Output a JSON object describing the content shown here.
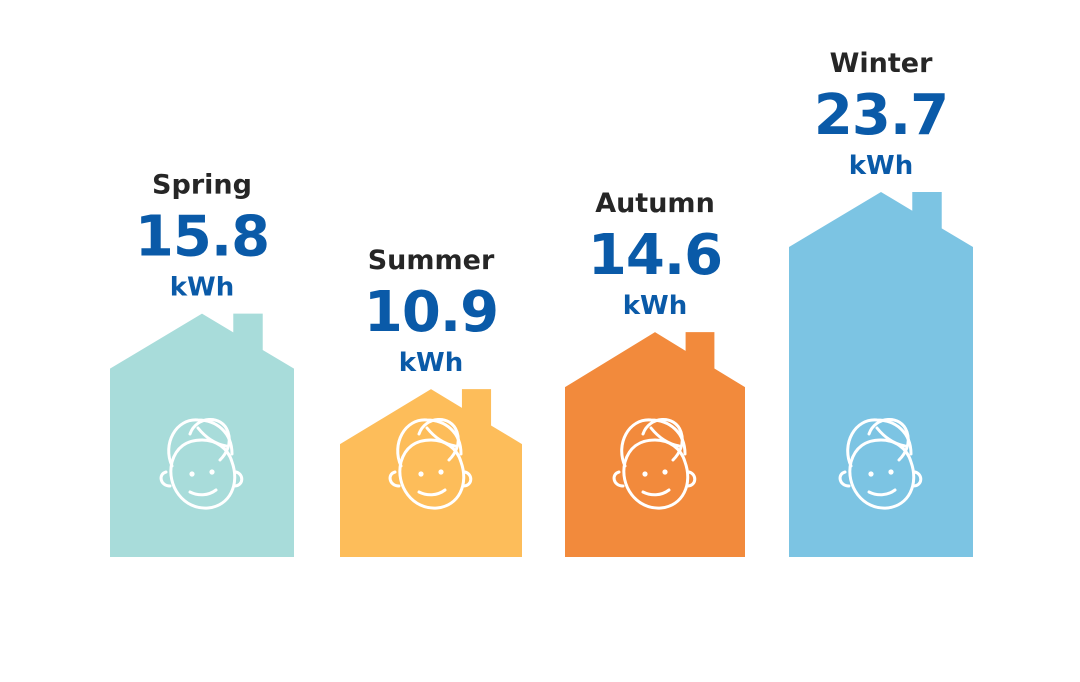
{
  "chart_data": {
    "type": "bar",
    "title": "",
    "xlabel": "",
    "ylabel": "",
    "unit": "kWh",
    "categories": [
      "Spring",
      "Summer",
      "Autumn",
      "Winter"
    ],
    "values": [
      15.8,
      10.9,
      14.6,
      23.7
    ],
    "value_labels": [
      "15.8",
      "10.9",
      "14.6",
      "23.7"
    ],
    "colors": [
      "#a8dcda",
      "#fdbd5a",
      "#f28a3c",
      "#7cc4e3"
    ],
    "mark_shape": "house",
    "mark_icon": "smiling-face-icon",
    "grid": false,
    "legend": "none"
  }
}
